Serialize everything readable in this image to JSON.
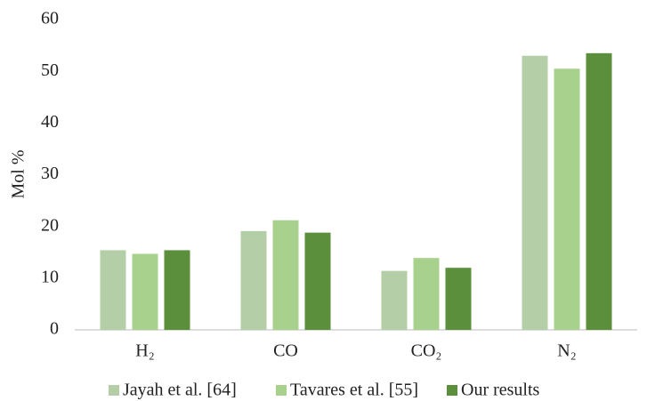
{
  "chart_data": {
    "type": "bar",
    "y_label": "Mol %",
    "categories": [
      "H₂",
      "CO",
      "CO₂",
      "N₂"
    ],
    "series": [
      {
        "name": "Jayah et al. [64]",
        "color": "#b4cfa7",
        "values": [
          15.4,
          19.1,
          11.4,
          53.0
        ]
      },
      {
        "name": "Tavares et al. [55]",
        "color": "#a9d18e",
        "values": [
          14.7,
          21.2,
          13.9,
          50.5
        ]
      },
      {
        "name": "Our results",
        "color": "#5b8f3b",
        "values": [
          15.4,
          18.8,
          12.0,
          53.5
        ]
      }
    ],
    "ylim": [
      0,
      60
    ],
    "yticks": [
      0,
      10,
      20,
      30,
      40,
      50,
      60
    ],
    "grid": false,
    "legend": "bottom"
  }
}
